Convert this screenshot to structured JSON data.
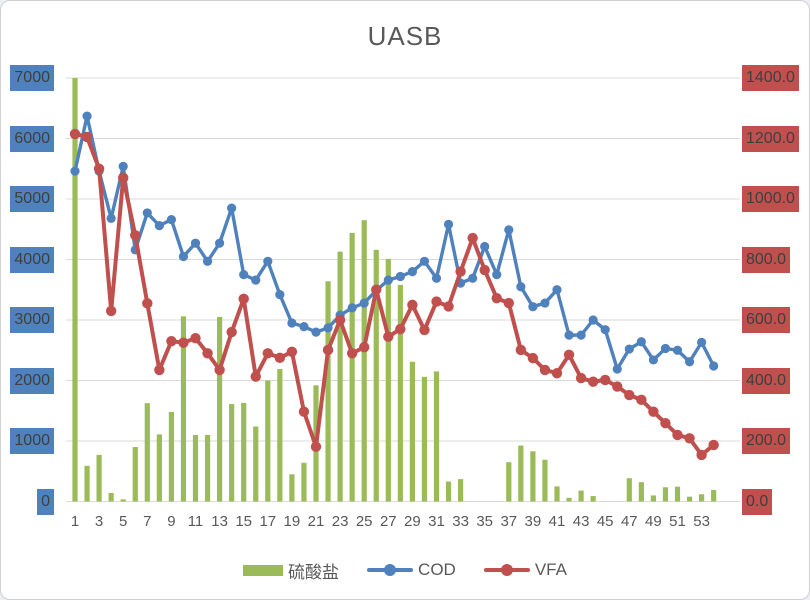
{
  "chart_data": {
    "type": "combo-bar-line",
    "title": "UASB",
    "grid": true,
    "gridline_color": "#D9D9D9",
    "categories": [
      1,
      2,
      3,
      4,
      5,
      6,
      7,
      8,
      9,
      10,
      11,
      12,
      13,
      14,
      15,
      16,
      17,
      18,
      19,
      20,
      21,
      22,
      23,
      24,
      25,
      26,
      27,
      28,
      29,
      30,
      31,
      32,
      33,
      34,
      35,
      36,
      37,
      38,
      39,
      40,
      41,
      42,
      43,
      44,
      45,
      46,
      47,
      48,
      49,
      50,
      51,
      52,
      53,
      54
    ],
    "series": [
      {
        "name": "硫酸盐",
        "type": "bar",
        "axis": "left",
        "color": "#9BBB59",
        "values": [
          7000,
          590,
          770,
          140,
          35,
          900,
          1625,
          1110,
          1480,
          3060,
          1100,
          1100,
          3050,
          1610,
          1630,
          1240,
          2000,
          2190,
          450,
          640,
          1920,
          3640,
          4130,
          4440,
          4650,
          4160,
          4010,
          3580,
          2310,
          2060,
          2150,
          330,
          370,
          0,
          0,
          0,
          650,
          925,
          830,
          690,
          250,
          60,
          180,
          90,
          0,
          0,
          385,
          320,
          100,
          235,
          245,
          80,
          120,
          190
        ]
      },
      {
        "name": "COD",
        "type": "line",
        "axis": "left",
        "color": "#4F81BD",
        "values": [
          5460,
          6370,
          5460,
          4680,
          5540,
          4160,
          4770,
          4560,
          4660,
          4050,
          4270,
          3970,
          4270,
          4850,
          3750,
          3660,
          3970,
          3420,
          2950,
          2890,
          2800,
          2870,
          3080,
          3200,
          3280,
          3490,
          3660,
          3720,
          3800,
          3970,
          3690,
          4580,
          3610,
          3690,
          4215,
          3750,
          4490,
          3550,
          3220,
          3280,
          3500,
          2750,
          2750,
          3000,
          2840,
          2190,
          2520,
          2640,
          2340,
          2530,
          2500,
          2310,
          2630,
          2240
        ]
      },
      {
        "name": "VFA",
        "type": "line",
        "axis": "right",
        "color": "#C0504D",
        "values": [
          1215,
          1205,
          1100,
          630,
          1070,
          880,
          655,
          435,
          530,
          525,
          540,
          490,
          435,
          560,
          670,
          413,
          490,
          475,
          495,
          297,
          181,
          501,
          600,
          490,
          510,
          700,
          545,
          570,
          650,
          567,
          661,
          645,
          760,
          871,
          765,
          672,
          656,
          501,
          474,
          435,
          424,
          485,
          408,
          396,
          402,
          380,
          352,
          336,
          297,
          259,
          220,
          209,
          154,
          187
        ]
      }
    ],
    "left_axis": {
      "min": 0,
      "max": 7000,
      "label_bg": "#4F81BD",
      "text_color": "#3F3F3F",
      "ticks": [
        {
          "v": 0,
          "label": "0"
        },
        {
          "v": 1000,
          "label": "1000"
        },
        {
          "v": 2000,
          "label": "2000"
        },
        {
          "v": 3000,
          "label": "3000"
        },
        {
          "v": 4000,
          "label": "4000"
        },
        {
          "v": 5000,
          "label": "5000"
        },
        {
          "v": 6000,
          "label": "6000"
        },
        {
          "v": 7000,
          "label": "7000"
        }
      ]
    },
    "right_axis": {
      "min": 0,
      "max": 1400,
      "label_bg": "#C0504D",
      "text_color": "#3F3F3F",
      "ticks": [
        {
          "v": 0,
          "label": "0.0"
        },
        {
          "v": 200,
          "label": "200.0"
        },
        {
          "v": 400,
          "label": "400.0"
        },
        {
          "v": 600,
          "label": "600.0"
        },
        {
          "v": 800,
          "label": "800.0"
        },
        {
          "v": 1000,
          "label": "1000.0"
        },
        {
          "v": 1200,
          "label": "1200.0"
        },
        {
          "v": 1400,
          "label": "1400.0"
        }
      ]
    },
    "x_axis": {
      "text_color": "#595959",
      "ticks": [
        {
          "index": 1,
          "label": "1"
        },
        {
          "index": 3,
          "label": "3"
        },
        {
          "index": 5,
          "label": "5"
        },
        {
          "index": 7,
          "label": "7"
        },
        {
          "index": 9,
          "label": "9"
        },
        {
          "index": 11,
          "label": "11"
        },
        {
          "index": 13,
          "label": "13"
        },
        {
          "index": 15,
          "label": "15"
        },
        {
          "index": 17,
          "label": "17"
        },
        {
          "index": 19,
          "label": "19"
        },
        {
          "index": 21,
          "label": "21"
        },
        {
          "index": 23,
          "label": "23"
        },
        {
          "index": 25,
          "label": "25"
        },
        {
          "index": 27,
          "label": "27"
        },
        {
          "index": 29,
          "label": "29"
        },
        {
          "index": 31,
          "label": "31"
        },
        {
          "index": 33,
          "label": "33"
        },
        {
          "index": 35,
          "label": "35"
        },
        {
          "index": 37,
          "label": "37"
        },
        {
          "index": 39,
          "label": "39"
        },
        {
          "index": 41,
          "label": "41"
        },
        {
          "index": 43,
          "label": "43"
        },
        {
          "index": 45,
          "label": "45"
        },
        {
          "index": 47,
          "label": "47"
        },
        {
          "index": 49,
          "label": "49"
        },
        {
          "index": 51,
          "label": "51"
        },
        {
          "index": 53,
          "label": "53"
        }
      ]
    },
    "legend": {
      "position": "bottom",
      "entries": [
        "硫酸盐",
        "COD",
        "VFA"
      ]
    }
  }
}
